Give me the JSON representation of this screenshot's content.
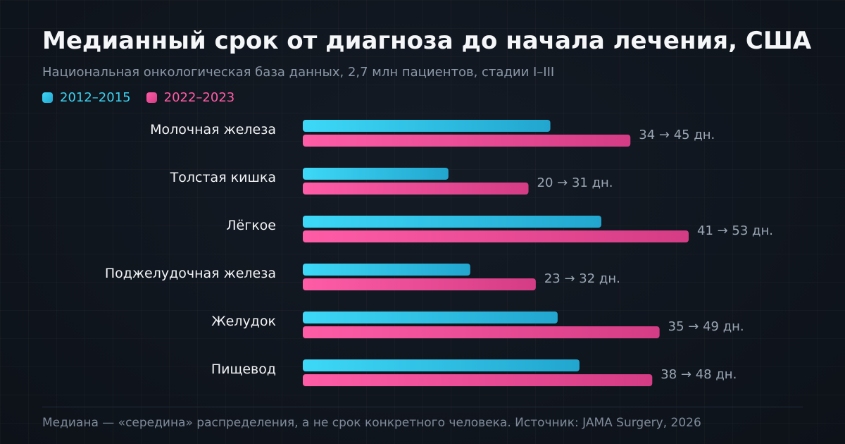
{
  "title": "Медианный срок от диагноза до начала лечения, США",
  "subtitle": "Национальная онкологическая база данных, 2,7 млн пациентов, стадии I–III",
  "legend": [
    {
      "label": "2012–2015",
      "color": "#3cd3f2"
    },
    {
      "label": "2022–2023",
      "color": "#ff5ca6"
    }
  ],
  "colors": {
    "series_a_start": "#3dd8f8",
    "series_a_end": "#22a6cf",
    "series_b_start": "#ff5ca6",
    "series_b_end": "#d43c85",
    "category_text": "#f1f3f5",
    "value_text": "#9aa6b4"
  },
  "chart_data": {
    "type": "bar",
    "orientation": "horizontal",
    "title": "Медианный срок от диагноза до начала лечения, США",
    "subtitle": "Национальная онкологическая база данных, 2,7 млн пациентов, стадии I–III",
    "categories": [
      "Молочная железа",
      "Толстая кишка",
      "Лёгкое",
      "Поджелудочная железа",
      "Желудок",
      "Пищевод"
    ],
    "series": [
      {
        "name": "2012–2015",
        "values": [
          34,
          20,
          41,
          23,
          35,
          38
        ]
      },
      {
        "name": "2022–2023",
        "values": [
          45,
          31,
          53,
          32,
          49,
          48
        ]
      }
    ],
    "value_labels": [
      "34 → 45 дн.",
      "20 → 31 дн.",
      "41 → 53 дн.",
      "23 → 32 дн.",
      "35 → 49 дн.",
      "38 → 48 дн."
    ],
    "xlim": [
      0,
      53
    ],
    "xlabel": "",
    "ylabel": "",
    "grid": false,
    "legend_position": "top-left"
  },
  "footnote": "Медиана — «середина» распределения, а не срок конкретного человека. Источник: JAMA Surgery, 2026"
}
